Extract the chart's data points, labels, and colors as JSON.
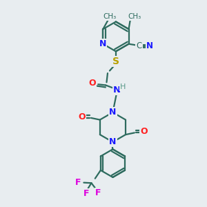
{
  "background_color": "#e8edf0",
  "bond_color": "#2d6b5e",
  "N_color": "#1a1aff",
  "O_color": "#ff2020",
  "S_color": "#b8a000",
  "F_color": "#dd00dd",
  "H_color": "#5a9a8a",
  "line_width": 1.6,
  "figsize": [
    3.0,
    3.0
  ],
  "dpi": 100,
  "xlim": [
    0,
    1
  ],
  "ylim": [
    0,
    1
  ]
}
